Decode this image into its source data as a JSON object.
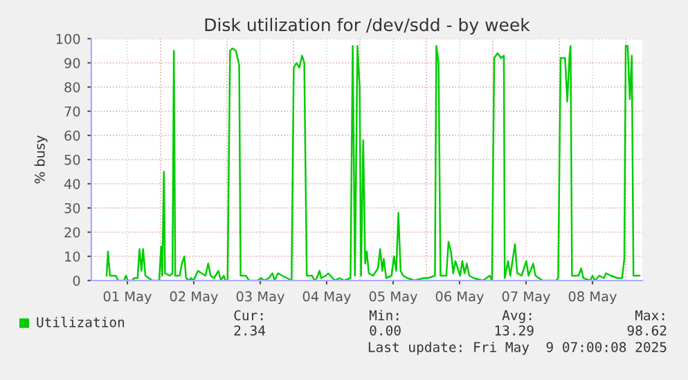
{
  "chart_data": {
    "type": "line",
    "title": "Disk utilization for /dev/sdd - by week",
    "ylabel": "% busy",
    "x": [
      "2025-05-01T04:30",
      "2025-05-01T05:00",
      "2025-05-01T05:42",
      "2025-05-01T07:48",
      "2025-05-01T08:42",
      "2025-05-01T10:48",
      "2025-05-01T11:30",
      "2025-05-01T12:06",
      "2025-05-01T13:48",
      "2025-05-01T14:24",
      "2025-05-01T15:42",
      "2025-05-01T16:24",
      "2025-05-01T17:06",
      "2025-05-01T17:42",
      "2025-05-01T18:30",
      "2025-05-01T21:00",
      "2025-05-01T23:30",
      "2025-05-02T00:12",
      "2025-05-02T00:36",
      "2025-05-02T01:12",
      "2025-05-02T01:36",
      "2025-05-02T03:18",
      "2025-05-02T04:18",
      "2025-05-02T04:48",
      "2025-05-02T05:18",
      "2025-05-02T06:54",
      "2025-05-02T07:42",
      "2025-05-02T08:36",
      "2025-05-02T09:12",
      "2025-05-02T10:12",
      "2025-05-02T11:00",
      "2025-05-02T11:54",
      "2025-05-02T13:30",
      "2025-05-02T14:48",
      "2025-05-02T16:12",
      "2025-05-02T17:12",
      "2025-05-02T18:06",
      "2025-05-02T19:18",
      "2025-05-02T20:54",
      "2025-05-02T21:48",
      "2025-05-02T22:48",
      "2025-05-02T23:24",
      "2025-05-03T00:12",
      "2025-05-03T01:06",
      "2025-05-03T01:54",
      "2025-05-03T03:12",
      "2025-05-03T04:24",
      "2025-05-03T04:54",
      "2025-05-03T06:48",
      "2025-05-03T08:00",
      "2025-05-03T11:00",
      "2025-05-03T12:18",
      "2025-05-03T13:24",
      "2025-05-03T15:06",
      "2025-05-03T16:24",
      "2025-05-03T17:12",
      "2025-05-03T18:24",
      "2025-05-03T20:00",
      "2025-05-03T21:42",
      "2025-05-03T23:18",
      "2025-05-04T00:06",
      "2025-05-04T01:06",
      "2025-05-04T02:06",
      "2025-05-04T03:06",
      "2025-05-04T03:54",
      "2025-05-04T04:48",
      "2025-05-04T06:42",
      "2025-05-04T07:36",
      "2025-05-04T08:24",
      "2025-05-04T09:24",
      "2025-05-04T10:00",
      "2025-05-04T11:42",
      "2025-05-04T12:30",
      "2025-05-04T15:00",
      "2025-05-04T16:36",
      "2025-05-04T18:18",
      "2025-05-04T20:36",
      "2025-05-04T21:24",
      "2025-05-04T22:12",
      "2025-05-04T23:06",
      "2025-05-04T23:54",
      "2025-05-05T00:24",
      "2025-05-05T01:12",
      "2025-05-05T01:54",
      "2025-05-05T02:30",
      "2025-05-05T03:12",
      "2025-05-05T04:48",
      "2025-05-05T06:30",
      "2025-05-05T07:18",
      "2025-05-05T08:06",
      "2025-05-05T08:36",
      "2025-05-05T09:30",
      "2025-05-05T11:24",
      "2025-05-05T12:18",
      "2025-05-05T13:06",
      "2025-05-05T13:54",
      "2025-05-05T14:42",
      "2025-05-05T15:36",
      "2025-05-05T17:12",
      "2025-05-05T19:42",
      "2025-05-05T23:00",
      "2025-05-06T00:36",
      "2025-05-06T03:06",
      "2025-05-06T03:36",
      "2025-05-06T04:24",
      "2025-05-06T05:06",
      "2025-05-06T07:12",
      "2025-05-06T08:00",
      "2025-05-06T08:54",
      "2025-05-06T09:42",
      "2025-05-06T10:30",
      "2025-05-06T12:12",
      "2025-05-06T13:00",
      "2025-05-06T13:48",
      "2025-05-06T14:36",
      "2025-05-06T15:30",
      "2025-05-06T17:06",
      "2025-05-06T20:24",
      "2025-05-06T22:54",
      "2025-05-06T23:42",
      "2025-05-07T00:30",
      "2025-05-07T01:42",
      "2025-05-07T03:00",
      "2025-05-07T04:00",
      "2025-05-07T04:18",
      "2025-05-07T05:30",
      "2025-05-07T06:18",
      "2025-05-07T08:00",
      "2025-05-07T08:48",
      "2025-05-07T10:24",
      "2025-05-07T12:06",
      "2025-05-07T12:54",
      "2025-05-07T14:36",
      "2025-05-07T15:24",
      "2025-05-07T17:54",
      "2025-05-07T20:18",
      "2025-05-07T22:48",
      "2025-05-07T23:36",
      "2025-05-08T00:30",
      "2025-05-08T02:06",
      "2025-05-08T02:54",
      "2025-05-08T03:42",
      "2025-05-08T04:06",
      "2025-05-08T04:36",
      "2025-05-08T07:00",
      "2025-05-08T07:54",
      "2025-05-08T08:42",
      "2025-05-08T11:12",
      "2025-05-08T12:00",
      "2025-05-08T12:48",
      "2025-05-08T14:30",
      "2025-05-08T16:06",
      "2025-05-08T16:54",
      "2025-05-08T18:36",
      "2025-05-08T21:06",
      "2025-05-08T22:42",
      "2025-05-08T23:30",
      "2025-05-09T00:00",
      "2025-05-09T00:42",
      "2025-05-09T01:30",
      "2025-05-09T02:12",
      "2025-05-09T02:48",
      "2025-05-09T05:00"
    ],
    "series": [
      {
        "name": "Utilization",
        "color": "#00cc00",
        "values": [
          2,
          12,
          2,
          2,
          0,
          0,
          2,
          0,
          0,
          1,
          1,
          13,
          4,
          13,
          2,
          0,
          0,
          14,
          2,
          45,
          3,
          2,
          3,
          95,
          2,
          2,
          7,
          10,
          1,
          0,
          1,
          0,
          4,
          3,
          2,
          7,
          2,
          1,
          4,
          0,
          2,
          0,
          0,
          95,
          96,
          95,
          89,
          2,
          2,
          0,
          0,
          1,
          0,
          1,
          3,
          0,
          3,
          2,
          1,
          0,
          88,
          90,
          88,
          93,
          90,
          2,
          2,
          0,
          1,
          4,
          1,
          2,
          3,
          0,
          1,
          0,
          1,
          97,
          2,
          97,
          80,
          2,
          58,
          7,
          12,
          3,
          2,
          5,
          13,
          4,
          9,
          1,
          2,
          10,
          4,
          28,
          4,
          2,
          1,
          0,
          1,
          1,
          2,
          97,
          90,
          2,
          2,
          16,
          12,
          3,
          8,
          2,
          8,
          3,
          7,
          2,
          1,
          0,
          2,
          0,
          92,
          94,
          92,
          93,
          1,
          8,
          2,
          15,
          3,
          2,
          8,
          2,
          7,
          2,
          0,
          0,
          0,
          1,
          92,
          92,
          74,
          93,
          97,
          2,
          2,
          5,
          1,
          0,
          2,
          0,
          2,
          1,
          3,
          2,
          1,
          1,
          9,
          97,
          97,
          75,
          93,
          2,
          2
        ]
      }
    ],
    "xlim": [
      "2025-04-30T23:00",
      "2025-05-09T06:00"
    ],
    "xticks": [
      {
        "value": "2025-05-01T12:00",
        "label": "01 May"
      },
      {
        "value": "2025-05-02T00:00",
        "label": null
      },
      {
        "value": "2025-05-02T12:00",
        "label": "02 May"
      },
      {
        "value": "2025-05-03T00:00",
        "label": null
      },
      {
        "value": "2025-05-03T12:00",
        "label": "03 May"
      },
      {
        "value": "2025-05-04T00:00",
        "label": null
      },
      {
        "value": "2025-05-04T12:00",
        "label": "04 May"
      },
      {
        "value": "2025-05-05T00:00",
        "label": null
      },
      {
        "value": "2025-05-05T12:00",
        "label": "05 May"
      },
      {
        "value": "2025-05-06T00:00",
        "label": null
      },
      {
        "value": "2025-05-06T12:00",
        "label": "06 May"
      },
      {
        "value": "2025-05-07T00:00",
        "label": null
      },
      {
        "value": "2025-05-07T12:00",
        "label": "07 May"
      },
      {
        "value": "2025-05-08T00:00",
        "label": null
      },
      {
        "value": "2025-05-08T12:00",
        "label": "08 May"
      },
      {
        "value": "2025-05-09T00:00",
        "label": null
      }
    ],
    "ylim": [
      0,
      100
    ],
    "yticks": [
      0,
      10,
      20,
      30,
      40,
      50,
      60,
      70,
      80,
      90,
      100
    ],
    "grid": true,
    "legend": "bottom",
    "marker": "none",
    "line_style": "solid",
    "annotations": [
      "Cur:",
      "Min:",
      "Avg:",
      "Max:",
      "2.34",
      "0.00",
      "13.29",
      "98.62",
      "Last update: Fri May  9 07:00:08 2025"
    ]
  }
}
